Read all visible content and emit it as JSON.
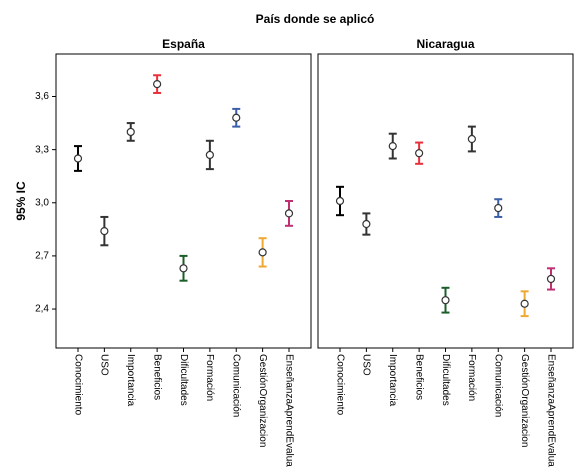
{
  "title": "País donde se aplicó",
  "y_label": "95% IC",
  "chart_data": [
    {
      "type": "errorbar",
      "title": "España",
      "categories": [
        "Conocimiento",
        "USO",
        "Importancia",
        "Beneficios",
        "Dificultades",
        "Formación",
        "Comunicación",
        "GestiónOrganizacion",
        "EnseñanzaAprendEvaluac"
      ],
      "values": [
        3.25,
        2.84,
        3.4,
        3.67,
        2.63,
        3.27,
        3.48,
        2.72,
        2.94
      ],
      "errors": [
        0.07,
        0.08,
        0.05,
        0.05,
        0.07,
        0.08,
        0.05,
        0.08,
        0.07
      ],
      "colors": [
        "#000000",
        "#333333",
        "#333333",
        "#e8303a",
        "#1a5e2a",
        "#333333",
        "#3a5ea8",
        "#f0a830",
        "#c03070"
      ],
      "ylim": [
        2.18,
        3.84
      ],
      "yticks": [
        {
          "value": 2.4,
          "label": "2,4"
        },
        {
          "value": 2.7,
          "label": "2,7"
        },
        {
          "value": 3.0,
          "label": "3,0"
        },
        {
          "value": 3.3,
          "label": "3,3"
        },
        {
          "value": 3.6,
          "label": "3,6"
        }
      ]
    },
    {
      "type": "errorbar",
      "title": "Nicaragua",
      "categories": [
        "Conocimiento",
        "USO",
        "Importancia",
        "Beneficios",
        "Dificultades",
        "Formación",
        "Comunicación",
        "GestiónOrganizacion",
        "EnseñanzaAprendEvaluac"
      ],
      "values": [
        3.01,
        2.88,
        3.32,
        3.28,
        2.45,
        3.36,
        2.97,
        2.43,
        2.57
      ],
      "errors": [
        0.08,
        0.06,
        0.07,
        0.06,
        0.07,
        0.07,
        0.05,
        0.07,
        0.06
      ],
      "colors": [
        "#000000",
        "#333333",
        "#333333",
        "#e8303a",
        "#1a5e2a",
        "#333333",
        "#3a5ea8",
        "#f0a830",
        "#c03070"
      ],
      "ylim": [
        2.18,
        3.84
      ]
    }
  ]
}
